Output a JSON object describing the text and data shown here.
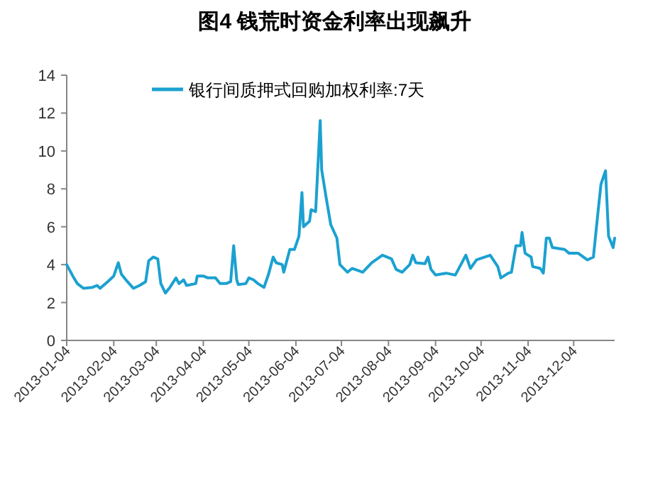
{
  "chart_data": {
    "type": "line",
    "title": "图4 钱荒时资金利率出现飙升",
    "x": [
      "2013-01-04",
      "2013-01-08",
      "2013-01-11",
      "2013-01-15",
      "2013-01-21",
      "2013-01-24",
      "2013-01-26",
      "2013-01-31",
      "2013-02-04",
      "2013-02-07",
      "2013-02-09",
      "2013-02-13",
      "2013-02-17",
      "2013-02-21",
      "2013-02-25",
      "2013-02-27",
      "2013-03-02",
      "2013-03-05",
      "2013-03-07",
      "2013-03-10",
      "2013-03-13",
      "2013-03-17",
      "2013-03-19",
      "2013-03-22",
      "2013-03-24",
      "2013-03-30",
      "2013-03-31",
      "2013-04-04",
      "2013-04-07",
      "2013-04-12",
      "2013-04-15",
      "2013-04-19",
      "2013-04-22",
      "2013-04-24",
      "2013-04-26",
      "2013-04-27",
      "2013-05-02",
      "2013-05-04",
      "2013-05-07",
      "2013-05-10",
      "2013-05-14",
      "2013-05-17",
      "2013-05-20",
      "2013-05-22",
      "2013-05-26",
      "2013-05-27",
      "2013-05-31",
      "2013-06-03",
      "2013-06-06",
      "2013-06-08",
      "2013-06-09",
      "2013-06-13",
      "2013-06-14",
      "2013-06-17",
      "2013-06-20",
      "2013-06-21",
      "2013-06-24",
      "2013-06-27",
      "2013-07-01",
      "2013-07-03",
      "2013-07-08",
      "2013-07-11",
      "2013-07-18",
      "2013-07-24",
      "2013-07-31",
      "2013-08-03",
      "2013-08-06",
      "2013-08-09",
      "2013-08-13",
      "2013-08-18",
      "2013-08-20",
      "2013-08-22",
      "2013-08-28",
      "2013-08-30",
      "2013-09-01",
      "2013-09-04",
      "2013-09-11",
      "2013-09-17",
      "2013-09-20",
      "2013-09-24",
      "2013-09-27",
      "2013-10-01",
      "2013-10-10",
      "2013-10-15",
      "2013-10-17",
      "2013-10-22",
      "2013-10-24",
      "2013-10-27",
      "2013-10-30",
      "2013-10-31",
      "2013-11-02",
      "2013-11-06",
      "2013-11-07",
      "2013-11-12",
      "2013-11-14",
      "2013-11-16",
      "2013-11-18",
      "2013-11-20",
      "2013-11-28",
      "2013-12-01",
      "2013-12-07",
      "2013-12-13",
      "2013-12-17",
      "2013-12-20",
      "2013-12-22",
      "2013-12-25",
      "2013-12-27",
      "2013-12-30",
      "2013-12-31"
    ],
    "series": [
      {
        "name": "银行间质押式回购加权利率:7天",
        "color": "#1ba1d0",
        "values": [
          4.0,
          3.4,
          3.0,
          2.75,
          2.8,
          2.9,
          2.75,
          3.1,
          3.4,
          4.1,
          3.5,
          3.1,
          2.75,
          2.9,
          3.1,
          4.2,
          4.4,
          4.3,
          3.0,
          2.5,
          2.8,
          3.3,
          3.0,
          3.2,
          2.9,
          3.0,
          3.4,
          3.4,
          3.3,
          3.3,
          3.0,
          3.0,
          3.1,
          5.0,
          3.2,
          2.95,
          3.0,
          3.3,
          3.2,
          3.0,
          2.8,
          3.5,
          4.4,
          4.1,
          4.0,
          3.6,
          4.8,
          4.8,
          5.5,
          7.8,
          6.0,
          6.3,
          6.9,
          6.8,
          11.6,
          9.0,
          7.5,
          6.1,
          5.4,
          4.0,
          3.6,
          3.8,
          3.6,
          4.1,
          4.5,
          4.4,
          4.3,
          3.75,
          3.6,
          4.0,
          4.5,
          4.1,
          4.05,
          4.4,
          3.75,
          3.45,
          3.55,
          3.45,
          3.9,
          4.5,
          3.8,
          4.25,
          4.5,
          3.9,
          3.3,
          3.55,
          3.6,
          5.0,
          5.0,
          5.7,
          4.6,
          4.4,
          3.9,
          3.8,
          3.55,
          5.4,
          5.4,
          4.9,
          4.8,
          4.6,
          4.6,
          4.25,
          4.4,
          6.75,
          8.25,
          8.95,
          5.5,
          4.9,
          5.4
        ]
      }
    ],
    "xlim": [
      "2013-01-04",
      "2013-12-31"
    ],
    "xticks": [
      "2013-01-04",
      "2013-02-04",
      "2013-03-04",
      "2013-04-04",
      "2013-05-04",
      "2013-06-04",
      "2013-07-04",
      "2013-08-04",
      "2013-09-04",
      "2013-10-04",
      "2013-11-04",
      "2013-12-04"
    ],
    "ylim": [
      0,
      14
    ],
    "yticks": [
      0,
      2,
      4,
      6,
      8,
      10,
      12,
      14
    ],
    "grid": false,
    "legend": "top",
    "line_style": "solid"
  }
}
